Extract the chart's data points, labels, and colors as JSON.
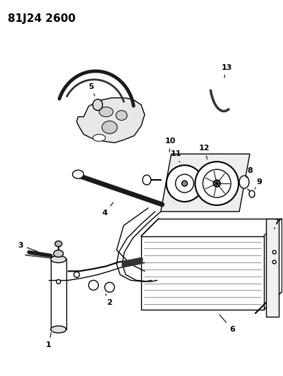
{
  "title": "81J24 2600",
  "background_color": "#ffffff",
  "line_color": "#000000",
  "label_color": "#000000",
  "title_fontsize": 11,
  "label_fontsize": 8,
  "fig_width": 4.01,
  "fig_height": 5.33,
  "dpi": 100
}
